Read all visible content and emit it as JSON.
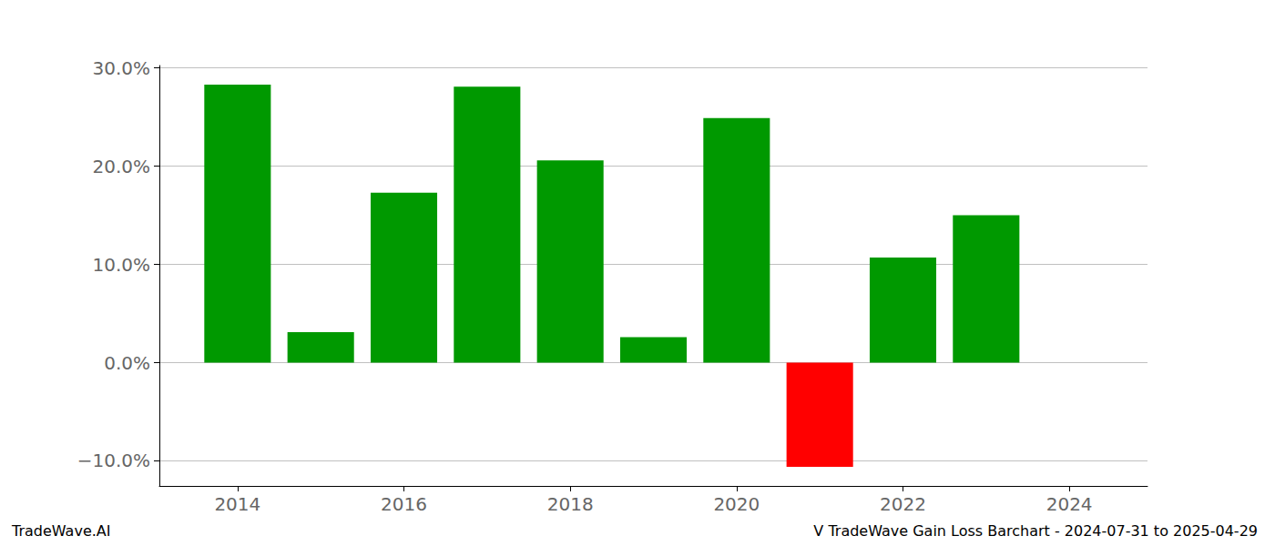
{
  "chart_data": {
    "type": "bar",
    "title": "V TradeWave Gain Loss Barchart - 2024-07-31 to 2025-04-29",
    "annotations": [
      "TradeWave.AI"
    ],
    "x": [
      2014,
      2015,
      2016,
      2017,
      2018,
      2019,
      2020,
      2021,
      2022,
      2023
    ],
    "values": [
      28.3,
      3.1,
      17.3,
      28.1,
      20.6,
      2.6,
      24.9,
      -10.6,
      10.7,
      15.0
    ],
    "colors": [
      "#009900",
      "#009900",
      "#009900",
      "#009900",
      "#009900",
      "#009900",
      "#009900",
      "#ff0000",
      "#009900",
      "#009900"
    ],
    "xlim": [
      2013.06,
      2024.94
    ],
    "xticks": [
      2014,
      2016,
      2018,
      2020,
      2022,
      2024
    ],
    "ylim": [
      -12.55,
      30.25
    ],
    "yticks": [
      {
        "value": -10,
        "label": "−10.0%"
      },
      {
        "value": 0,
        "label": "0.0%"
      },
      {
        "value": 10,
        "label": "10.0%"
      },
      {
        "value": 20,
        "label": "20.0%"
      },
      {
        "value": 30,
        "label": "30.0%"
      }
    ],
    "grid": true
  }
}
